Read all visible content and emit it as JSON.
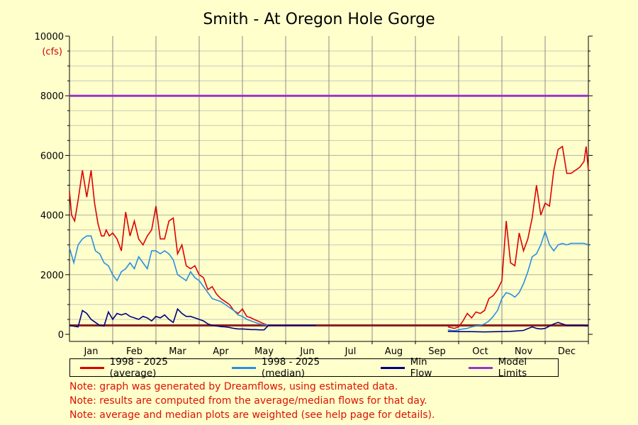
{
  "chart_data": {
    "type": "line",
    "title": "Smith - At Oregon Hole Gorge",
    "y_unit": "(cfs)",
    "ylim": [
      0,
      10000
    ],
    "y_ticks": [
      0,
      2000,
      4000,
      6000,
      8000,
      10000
    ],
    "y_tick_labels": [
      "0",
      "2000",
      "4000",
      "6000",
      "8000",
      "10000"
    ],
    "categories": [
      "Jan",
      "Feb",
      "Mar",
      "Apr",
      "May",
      "Jun",
      "Jul",
      "Aug",
      "Sep",
      "Oct",
      "Nov",
      "Dec"
    ],
    "grid": true,
    "legend_position": "bottom",
    "colors": {
      "background": "#ffffcc",
      "average": "#dd0000",
      "median": "#2a8ee0",
      "min_flow": "#000080",
      "model_upper": "#9933cc",
      "model_lower": "#8b1a1a"
    },
    "series": [
      {
        "name": "1998 - 2025 (average)",
        "x": [
          0,
          0.05,
          0.12,
          0.2,
          0.3,
          0.4,
          0.5,
          0.58,
          0.66,
          0.74,
          0.8,
          0.85,
          0.92,
          1.0,
          1.1,
          1.2,
          1.3,
          1.4,
          1.5,
          1.6,
          1.7,
          1.8,
          1.9,
          2.0,
          2.1,
          2.2,
          2.3,
          2.4,
          2.5,
          2.6,
          2.7,
          2.8,
          2.9,
          3.0,
          3.1,
          3.2,
          3.3,
          3.4,
          3.5,
          3.6,
          3.7,
          3.8,
          3.9,
          4.0,
          4.1,
          4.2,
          4.3,
          4.4,
          4.5,
          4.6,
          4.7,
          4.8,
          4.9,
          5.0,
          5.1,
          5.2,
          5.3,
          5.4,
          5.5,
          5.6,
          5.7,
          8.75,
          8.9,
          9.0,
          9.1,
          9.2,
          9.3,
          9.4,
          9.5,
          9.6,
          9.7,
          9.8,
          9.9,
          10.0,
          10.1,
          10.2,
          10.3,
          10.4,
          10.5,
          10.6,
          10.7,
          10.8,
          10.9,
          11.0,
          11.1,
          11.2,
          11.3,
          11.4,
          11.5,
          11.6,
          11.7,
          11.8,
          11.9,
          11.95,
          12.0
        ],
        "values": [
          4800,
          4000,
          3800,
          4500,
          5500,
          4600,
          5500,
          4400,
          3700,
          3300,
          3300,
          3500,
          3300,
          3400,
          3200,
          2800,
          4100,
          3300,
          3800,
          3200,
          3000,
          3300,
          3500,
          4300,
          3200,
          3200,
          3800,
          3900,
          2700,
          3000,
          2300,
          2200,
          2300,
          2000,
          1900,
          1500,
          1600,
          1350,
          1200,
          1100,
          1000,
          800,
          700,
          850,
          600,
          550,
          480,
          420,
          350,
          300,
          290,
          300,
          300,
          300,
          300,
          300,
          300,
          300,
          300,
          300,
          300,
          250,
          200,
          250,
          450,
          700,
          550,
          750,
          700,
          800,
          1200,
          1300,
          1500,
          1800,
          3800,
          2400,
          2300,
          3400,
          2800,
          3200,
          3900,
          5000,
          4000,
          4400,
          4300,
          5500,
          6200,
          6300,
          5400,
          5400,
          5500,
          5600,
          5800,
          6300,
          5500
        ]
      },
      {
        "name": "1998 - 2025 (median)",
        "x": [
          0,
          0.1,
          0.2,
          0.3,
          0.4,
          0.5,
          0.6,
          0.7,
          0.8,
          0.9,
          1.0,
          1.1,
          1.2,
          1.3,
          1.4,
          1.5,
          1.6,
          1.7,
          1.8,
          1.9,
          2.0,
          2.1,
          2.2,
          2.3,
          2.4,
          2.5,
          2.6,
          2.7,
          2.8,
          2.9,
          3.0,
          3.1,
          3.2,
          3.3,
          3.4,
          3.5,
          3.6,
          3.7,
          3.8,
          3.9,
          4.0,
          4.1,
          4.2,
          4.3,
          4.4,
          4.5,
          4.6,
          4.7,
          4.8,
          4.9,
          5.0,
          5.1,
          5.2,
          5.3,
          5.4,
          5.5,
          5.6,
          5.7,
          8.75,
          8.9,
          9.0,
          9.1,
          9.2,
          9.3,
          9.4,
          9.5,
          9.6,
          9.7,
          9.8,
          9.9,
          10.0,
          10.1,
          10.2,
          10.3,
          10.4,
          10.5,
          10.6,
          10.7,
          10.8,
          10.9,
          11.0,
          11.1,
          11.2,
          11.3,
          11.4,
          11.5,
          11.6,
          11.7,
          11.8,
          11.9,
          12.0
        ],
        "values": [
          2900,
          2400,
          3000,
          3200,
          3300,
          3300,
          2800,
          2700,
          2400,
          2300,
          2000,
          1800,
          2100,
          2200,
          2400,
          2200,
          2600,
          2400,
          2200,
          2800,
          2800,
          2700,
          2800,
          2700,
          2500,
          2000,
          1900,
          1800,
          2100,
          1900,
          1800,
          1600,
          1400,
          1200,
          1150,
          1100,
          1000,
          900,
          800,
          650,
          600,
          500,
          450,
          400,
          350,
          320,
          300,
          300,
          300,
          300,
          300,
          300,
          300,
          300,
          300,
          300,
          300,
          300,
          150,
          120,
          150,
          180,
          200,
          250,
          280,
          300,
          350,
          450,
          600,
          800,
          1200,
          1400,
          1350,
          1250,
          1400,
          1700,
          2100,
          2600,
          2700,
          3000,
          3450,
          3000,
          2800,
          3000,
          3050,
          3000,
          3050,
          3050,
          3050,
          3050,
          3000
        ]
      },
      {
        "name": "Min Flow",
        "x": [
          0,
          0.2,
          0.3,
          0.4,
          0.5,
          0.6,
          0.7,
          0.8,
          0.9,
          1.0,
          1.1,
          1.2,
          1.3,
          1.4,
          1.5,
          1.6,
          1.7,
          1.8,
          1.9,
          2.0,
          2.1,
          2.2,
          2.3,
          2.4,
          2.5,
          2.6,
          2.7,
          2.8,
          2.9,
          3.0,
          3.1,
          3.2,
          3.3,
          3.4,
          3.5,
          3.6,
          3.7,
          3.8,
          3.9,
          4.0,
          4.1,
          4.2,
          4.3,
          4.4,
          4.5,
          4.6,
          4.7,
          4.8,
          4.9,
          5.0,
          5.1,
          5.2,
          5.3,
          5.4,
          5.5,
          5.6,
          5.7,
          8.75,
          9.0,
          9.3,
          9.6,
          9.9,
          10.2,
          10.5,
          10.7,
          10.8,
          10.9,
          11.0,
          11.2,
          11.3,
          11.5,
          11.7,
          11.85,
          12.0
        ],
        "values": [
          300,
          250,
          800,
          700,
          500,
          400,
          300,
          280,
          750,
          500,
          700,
          650,
          700,
          600,
          550,
          500,
          600,
          550,
          450,
          600,
          550,
          650,
          500,
          400,
          850,
          700,
          600,
          600,
          550,
          500,
          450,
          350,
          300,
          280,
          260,
          250,
          230,
          200,
          180,
          180,
          170,
          160,
          160,
          150,
          150,
          300,
          300,
          300,
          300,
          300,
          300,
          300,
          300,
          300,
          300,
          300,
          300,
          100,
          90,
          90,
          80,
          90,
          100,
          130,
          250,
          200,
          180,
          200,
          350,
          400,
          300,
          300,
          300,
          280
        ]
      },
      {
        "name": "Model Limits",
        "upper": 8000,
        "lower": 300
      }
    ]
  },
  "legend": {
    "average": "1998 - 2025 (average)",
    "median": "1998 - 2025 (median)",
    "min_flow": "Min Flow",
    "model_limits": "Model Limits"
  },
  "notes": [
    "Note: graph was generated by Dreamflows, using estimated data.",
    "Note: results are computed from the average/median flows for that day.",
    "Note: average and median plots are weighted (see help page for details)."
  ]
}
